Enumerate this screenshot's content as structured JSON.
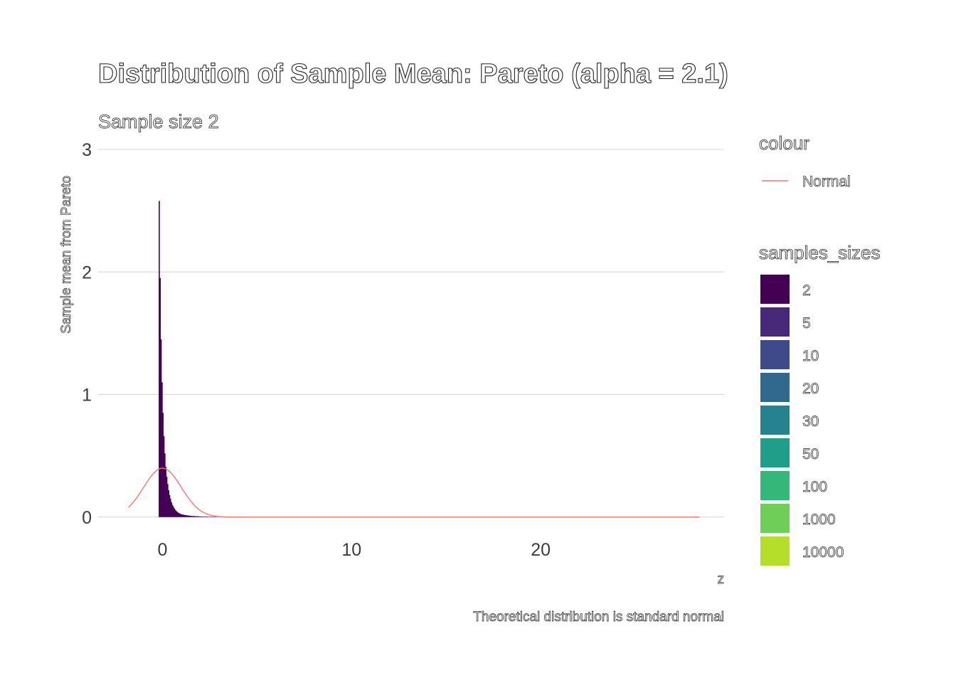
{
  "chart_data": {
    "type": "area",
    "title": "Distribution of Sample Mean: Pareto (alpha = 2.1)",
    "subtitle": "Sample size 2",
    "xlabel": "z",
    "ylabel": "Sample mean from Pareto",
    "caption": "Theoretical distribution is standard normal",
    "xlim": [
      -3.4,
      29.7
    ],
    "ylim": [
      -0.1,
      3.0
    ],
    "x_ticks": [
      0,
      10,
      20
    ],
    "y_ticks": [
      0,
      1,
      2,
      3
    ],
    "grid": "horizontal major",
    "legend_position": "right",
    "series": [
      {
        "name": "2",
        "kind": "histogram",
        "color": "#440154",
        "bin_width": 0.05,
        "bins": [
          {
            "x": -0.2,
            "y": 2.58
          },
          {
            "x": -0.15,
            "y": 1.95
          },
          {
            "x": -0.1,
            "y": 1.45
          },
          {
            "x": -0.05,
            "y": 1.1
          },
          {
            "x": 0.0,
            "y": 0.85
          },
          {
            "x": 0.05,
            "y": 0.66
          },
          {
            "x": 0.1,
            "y": 0.52
          },
          {
            "x": 0.15,
            "y": 0.41
          },
          {
            "x": 0.2,
            "y": 0.33
          },
          {
            "x": 0.25,
            "y": 0.27
          },
          {
            "x": 0.3,
            "y": 0.22
          },
          {
            "x": 0.35,
            "y": 0.18
          },
          {
            "x": 0.4,
            "y": 0.15
          },
          {
            "x": 0.45,
            "y": 0.12
          },
          {
            "x": 0.5,
            "y": 0.1
          },
          {
            "x": 0.55,
            "y": 0.085
          },
          {
            "x": 0.6,
            "y": 0.07
          },
          {
            "x": 0.65,
            "y": 0.06
          },
          {
            "x": 0.7,
            "y": 0.05
          },
          {
            "x": 0.75,
            "y": 0.043
          },
          {
            "x": 0.8,
            "y": 0.037
          },
          {
            "x": 0.85,
            "y": 0.032
          },
          {
            "x": 0.9,
            "y": 0.028
          },
          {
            "x": 0.95,
            "y": 0.024
          },
          {
            "x": 1.0,
            "y": 0.021
          },
          {
            "x": 1.1,
            "y": 0.018
          },
          {
            "x": 1.2,
            "y": 0.015
          },
          {
            "x": 1.3,
            "y": 0.013
          },
          {
            "x": 1.4,
            "y": 0.011
          },
          {
            "x": 1.5,
            "y": 0.009
          },
          {
            "x": 1.7,
            "y": 0.007
          },
          {
            "x": 1.9,
            "y": 0.005
          },
          {
            "x": 2.1,
            "y": 0.004
          },
          {
            "x": 2.4,
            "y": 0.003
          },
          {
            "x": 2.8,
            "y": 0.002
          }
        ]
      },
      {
        "name": "Normal",
        "kind": "line",
        "color": "#f8766d",
        "function": "standard normal density",
        "x_range": [
          -1.8,
          28.4
        ]
      }
    ],
    "legends": [
      {
        "title": "colour",
        "items": [
          {
            "label": "Normal",
            "color": "#f8766d",
            "shape": "line"
          }
        ]
      },
      {
        "title": "samples_sizes",
        "items": [
          {
            "label": "2",
            "color": "#440154"
          },
          {
            "label": "5",
            "color": "#482878"
          },
          {
            "label": "10",
            "color": "#3e4a89"
          },
          {
            "label": "20",
            "color": "#31688e"
          },
          {
            "label": "30",
            "color": "#26828e"
          },
          {
            "label": "50",
            "color": "#1f9e89"
          },
          {
            "label": "100",
            "color": "#35b779"
          },
          {
            "label": "1000",
            "color": "#6ece58"
          },
          {
            "label": "10000",
            "color": "#b5de2b"
          }
        ]
      }
    ]
  }
}
